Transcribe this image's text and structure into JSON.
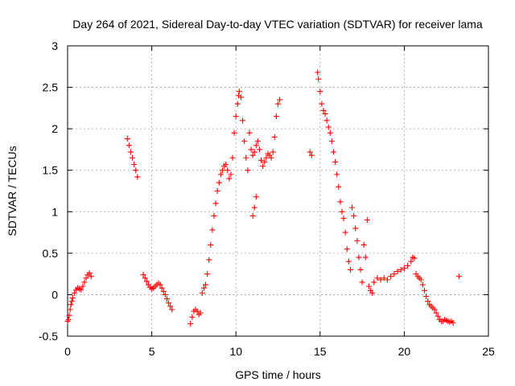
{
  "chart_data": {
    "type": "scatter",
    "title": "Day 264 of 2021, Sidereal Day-to-day VTEC variation (SDTVAR) for receiver lama",
    "xlabel": "GPS time / hours",
    "ylabel": "SDTVAR / TECUs",
    "xlim": [
      0,
      25
    ],
    "ylim": [
      -0.5,
      3
    ],
    "xticks": [
      0,
      5,
      10,
      15,
      20,
      25
    ],
    "yticks": [
      -0.5,
      0,
      0.5,
      1,
      1.5,
      2,
      2.5,
      3
    ],
    "xtick_labels": [
      "0",
      "5",
      "10",
      "15",
      "20",
      "25"
    ],
    "ytick_labels": [
      "-0.5",
      "0",
      "0.5",
      "1",
      "1.5",
      "2",
      "2.5",
      "3"
    ],
    "grid": true,
    "marker": "+",
    "series": [
      {
        "name": "lama",
        "color": "#ff0000",
        "x": [
          0.0,
          0.05,
          0.1,
          0.15,
          0.2,
          0.25,
          0.3,
          0.4,
          0.5,
          0.6,
          0.7,
          0.8,
          0.9,
          1.0,
          1.1,
          1.2,
          1.3,
          1.4,
          3.55,
          3.65,
          3.75,
          3.85,
          3.95,
          4.05,
          4.15,
          4.5,
          4.6,
          4.7,
          4.8,
          4.9,
          5.0,
          5.1,
          5.2,
          5.3,
          5.4,
          5.5,
          5.6,
          5.7,
          5.8,
          5.9,
          6.0,
          6.1,
          6.2,
          7.3,
          7.4,
          7.5,
          7.6,
          7.7,
          7.8,
          7.9,
          8.0,
          8.1,
          8.2,
          8.3,
          8.4,
          8.5,
          8.6,
          8.7,
          8.8,
          8.9,
          9.0,
          9.1,
          9.2,
          9.3,
          9.4,
          9.5,
          9.6,
          9.7,
          9.8,
          9.9,
          10.0,
          10.1,
          10.15,
          10.2,
          10.3,
          10.4,
          10.5,
          10.6,
          10.7,
          11.0,
          11.1,
          11.2,
          10.8,
          10.9,
          11.0,
          11.1,
          11.2,
          11.3,
          11.4,
          11.5,
          11.6,
          11.7,
          11.8,
          11.9,
          12.0,
          12.1,
          12.2,
          12.3,
          12.4,
          12.5,
          12.6,
          14.4,
          14.5,
          14.85,
          14.9,
          15.0,
          15.1,
          15.2,
          15.3,
          15.4,
          15.5,
          15.6,
          15.7,
          15.8,
          15.9,
          16.0,
          16.1,
          16.2,
          16.3,
          16.4,
          16.5,
          16.6,
          16.7,
          16.8,
          16.9,
          17.0,
          17.1,
          17.2,
          17.3,
          17.4,
          17.5,
          17.6,
          17.7,
          17.8,
          17.9,
          18.0,
          18.1,
          18.2,
          18.4,
          18.6,
          18.8,
          19.0,
          19.2,
          19.4,
          19.6,
          19.8,
          20.0,
          20.2,
          20.4,
          20.5,
          20.6,
          20.7,
          20.8,
          20.9,
          21.0,
          21.1,
          21.2,
          21.3,
          21.4,
          21.5,
          21.6,
          21.7,
          21.8,
          21.9,
          22.0,
          22.1,
          22.2,
          22.3,
          22.4,
          22.5,
          22.6,
          22.7,
          22.8,
          22.9,
          23.25
        ],
        "y": [
          -0.32,
          -0.3,
          -0.25,
          -0.18,
          -0.12,
          -0.08,
          -0.04,
          0.02,
          0.06,
          0.08,
          0.07,
          0.06,
          0.1,
          0.15,
          0.2,
          0.24,
          0.26,
          0.22,
          1.88,
          1.8,
          1.72,
          1.65,
          1.57,
          1.5,
          1.42,
          0.24,
          0.2,
          0.16,
          0.12,
          0.09,
          0.07,
          0.08,
          0.1,
          0.12,
          0.14,
          0.12,
          0.08,
          0.04,
          0.0,
          -0.05,
          -0.1,
          -0.14,
          -0.18,
          -0.35,
          -0.27,
          -0.2,
          -0.18,
          -0.2,
          -0.24,
          -0.22,
          0.02,
          0.08,
          0.12,
          0.25,
          0.42,
          0.6,
          0.78,
          0.95,
          1.1,
          1.25,
          1.35,
          1.45,
          1.5,
          1.55,
          1.57,
          1.5,
          1.4,
          1.45,
          1.65,
          1.95,
          2.15,
          2.3,
          2.4,
          2.45,
          2.38,
          2.1,
          1.85,
          1.65,
          1.5,
          0.95,
          1.05,
          1.18,
          1.95,
          1.75,
          1.68,
          1.72,
          1.8,
          1.85,
          1.75,
          1.62,
          1.55,
          1.6,
          1.65,
          1.7,
          1.68,
          1.65,
          1.72,
          1.9,
          2.15,
          2.3,
          2.35,
          1.72,
          1.68,
          2.68,
          2.6,
          2.45,
          2.3,
          2.22,
          2.18,
          2.1,
          2.02,
          1.95,
          1.85,
          1.72,
          1.6,
          1.45,
          1.3,
          1.12,
          1.0,
          0.92,
          0.75,
          0.55,
          0.4,
          0.3,
          1.05,
          0.95,
          0.8,
          0.65,
          0.45,
          0.3,
          0.15,
          0.6,
          0.45,
          0.9,
          0.1,
          0.05,
          0.02,
          0.15,
          0.2,
          0.18,
          0.2,
          0.18,
          0.22,
          0.25,
          0.28,
          0.3,
          0.32,
          0.35,
          0.4,
          0.45,
          0.44,
          0.25,
          0.22,
          0.2,
          0.18,
          0.12,
          0.05,
          -0.02,
          -0.08,
          -0.12,
          -0.14,
          -0.16,
          -0.18,
          -0.22,
          -0.26,
          -0.3,
          -0.32,
          -0.32,
          -0.3,
          -0.31,
          -0.32,
          -0.33,
          -0.32,
          -0.34,
          0.22
        ]
      }
    ]
  }
}
